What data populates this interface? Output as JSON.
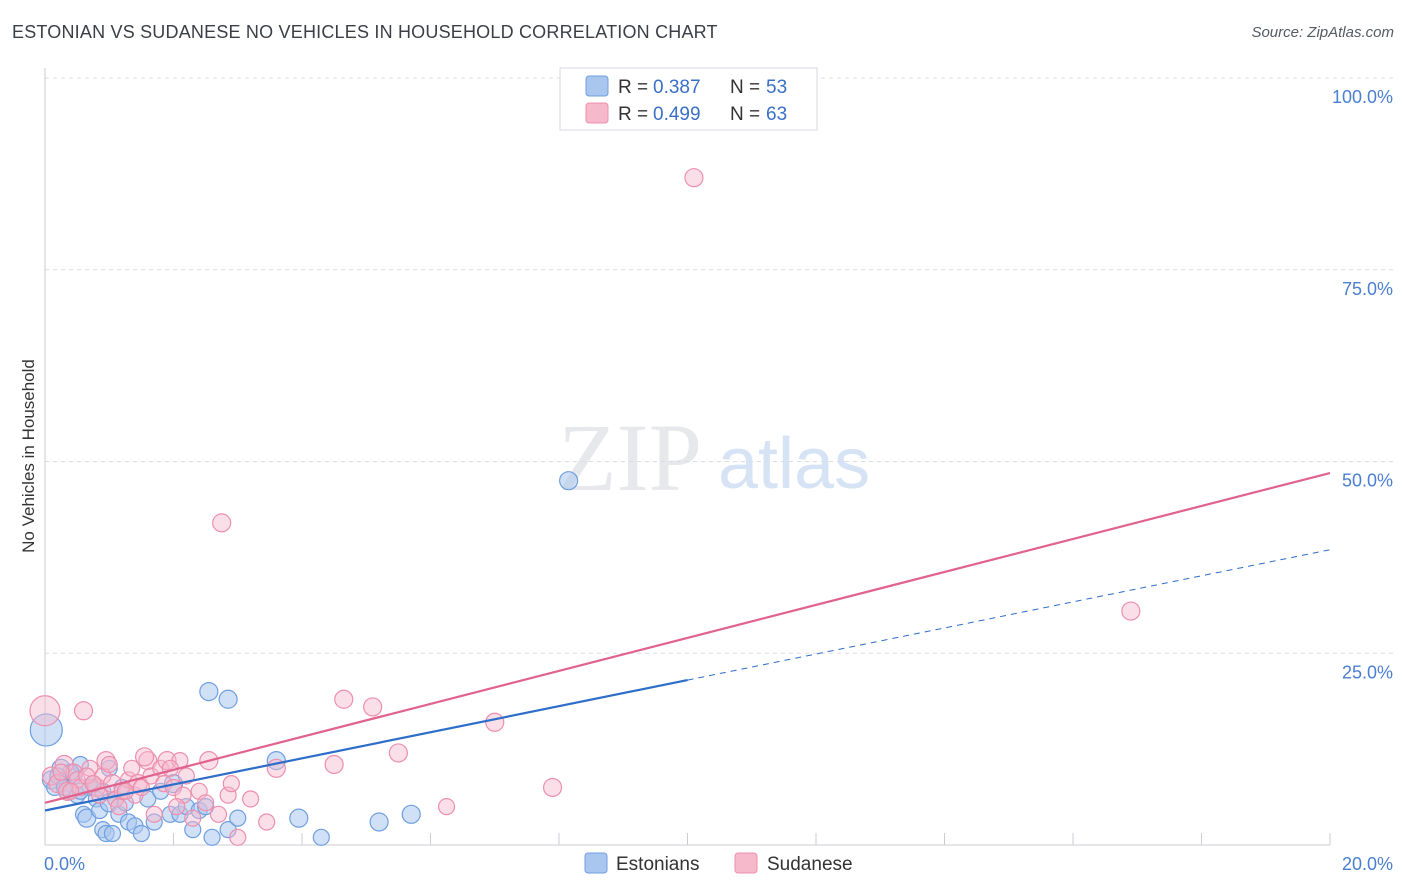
{
  "title": "ESTONIAN VS SUDANESE NO VEHICLES IN HOUSEHOLD CORRELATION CHART",
  "source": "Source: ZipAtlas.com",
  "watermark": {
    "zip": "ZIP",
    "atlas": "atlas"
  },
  "colors": {
    "blue_fill": "#a9c6ef",
    "blue_stroke": "#6f9fe0",
    "blue_line": "#2e6ec9",
    "pink_fill": "#f6b8cb",
    "pink_stroke": "#ec8fad",
    "pink_line": "#e0628d",
    "grid": "#d9dde3",
    "axis_text": "#4a7fd0"
  },
  "legend": {
    "rows": [
      {
        "r_label": "R =",
        "r_value": "0.387",
        "n_label": "N =",
        "n_value": "53",
        "color": "#a9c6ef"
      },
      {
        "r_label": "R =",
        "r_value": "0.499",
        "n_label": "N =",
        "n_value": "63",
        "color": "#f6b8cb"
      }
    ]
  },
  "chart_data": {
    "type": "scatter",
    "title": "ESTONIAN VS SUDANESE NO VEHICLES IN HOUSEHOLD CORRELATION CHART",
    "xlabel": "",
    "ylabel": "No Vehicles in Household",
    "xlim": [
      0,
      20
    ],
    "ylim": [
      0,
      100
    ],
    "x_tick_labels": [
      "0.0%",
      "20.0%"
    ],
    "y_tick_labels": [
      "25.0%",
      "50.0%",
      "75.0%",
      "100.0%"
    ],
    "y_ticks": [
      25,
      50,
      75,
      100
    ],
    "legend_bottom": [
      "Estonians",
      "Sudanese"
    ],
    "series": [
      {
        "name": "Estonians",
        "r": 0.387,
        "n": 53,
        "trend": {
          "x0": 0,
          "y0": 4.5,
          "x1": 10,
          "y1": 21.5,
          "dashed_to_x": 20,
          "dashed_to_y": 38.5
        },
        "points": [
          [
            0.02,
            15.0,
            16
          ],
          [
            0.1,
            8.5,
            9
          ],
          [
            0.15,
            7.5,
            8
          ],
          [
            0.25,
            10.0,
            9
          ],
          [
            0.3,
            8.0,
            8
          ],
          [
            0.35,
            7.0,
            9
          ],
          [
            0.45,
            9.0,
            8
          ],
          [
            0.5,
            6.5,
            8
          ],
          [
            0.55,
            10.5,
            8
          ],
          [
            0.6,
            4.0,
            8
          ],
          [
            0.65,
            3.5,
            9
          ],
          [
            0.7,
            7.5,
            8
          ],
          [
            0.75,
            8.0,
            8
          ],
          [
            0.8,
            6.0,
            8
          ],
          [
            0.85,
            4.5,
            8
          ],
          [
            0.9,
            7.0,
            8
          ],
          [
            0.9,
            2.0,
            8
          ],
          [
            0.95,
            1.5,
            8
          ],
          [
            1.0,
            5.5,
            9
          ],
          [
            1.05,
            1.5,
            8
          ],
          [
            1.1,
            6.0,
            8
          ],
          [
            1.15,
            4.0,
            8
          ],
          [
            1.2,
            7.5,
            8
          ],
          [
            1.3,
            3.0,
            8
          ],
          [
            1.4,
            2.5,
            8
          ],
          [
            1.5,
            1.5,
            8
          ],
          [
            1.6,
            6.0,
            8
          ],
          [
            1.8,
            7.0,
            8
          ],
          [
            1.95,
            4.0,
            8
          ],
          [
            2.0,
            8.0,
            9
          ],
          [
            2.1,
            4.0,
            8
          ],
          [
            2.2,
            5.0,
            8
          ],
          [
            2.4,
            4.5,
            8
          ],
          [
            2.5,
            5.0,
            8
          ],
          [
            2.6,
            1.0,
            8
          ],
          [
            2.85,
            2.0,
            8
          ],
          [
            3.0,
            3.5,
            8
          ],
          [
            2.55,
            20.0,
            9
          ],
          [
            2.85,
            19.0,
            9
          ],
          [
            3.6,
            11.0,
            9
          ],
          [
            3.95,
            3.5,
            9
          ],
          [
            4.3,
            1.0,
            8
          ],
          [
            5.2,
            3.0,
            9
          ],
          [
            5.7,
            4.0,
            9
          ],
          [
            8.15,
            47.5,
            9
          ],
          [
            0.4,
            9.5,
            8
          ],
          [
            1.25,
            5.5,
            8
          ],
          [
            0.2,
            9.0,
            8
          ],
          [
            1.7,
            3.0,
            8
          ],
          [
            0.55,
            7.0,
            8
          ],
          [
            1.0,
            10.0,
            8
          ],
          [
            0.3,
            7.5,
            8
          ],
          [
            2.3,
            2.0,
            8
          ]
        ]
      },
      {
        "name": "Sudanese",
        "r": 0.499,
        "n": 63,
        "trend": {
          "x0": 0,
          "y0": 5.5,
          "x1": 20,
          "y1": 48.5
        },
        "points": [
          [
            0.0,
            17.5,
            15
          ],
          [
            0.1,
            9.0,
            9
          ],
          [
            0.2,
            8.0,
            9
          ],
          [
            0.3,
            10.5,
            9
          ],
          [
            0.35,
            7.0,
            9
          ],
          [
            0.45,
            9.5,
            8
          ],
          [
            0.5,
            8.5,
            8
          ],
          [
            0.55,
            7.5,
            8
          ],
          [
            0.6,
            17.5,
            9
          ],
          [
            0.7,
            10.0,
            8
          ],
          [
            0.8,
            7.5,
            9
          ],
          [
            0.85,
            6.5,
            8
          ],
          [
            0.9,
            9.0,
            8
          ],
          [
            0.95,
            11.0,
            9
          ],
          [
            1.0,
            10.5,
            8
          ],
          [
            1.05,
            8.0,
            9
          ],
          [
            1.1,
            6.0,
            8
          ],
          [
            1.15,
            5.0,
            8
          ],
          [
            1.2,
            7.0,
            8
          ],
          [
            1.3,
            8.5,
            8
          ],
          [
            1.35,
            10.0,
            8
          ],
          [
            1.4,
            6.5,
            8
          ],
          [
            1.45,
            8.0,
            9
          ],
          [
            1.5,
            7.5,
            8
          ],
          [
            1.6,
            11.0,
            9
          ],
          [
            1.65,
            9.0,
            8
          ],
          [
            1.7,
            4.0,
            8
          ],
          [
            1.8,
            10.0,
            8
          ],
          [
            1.85,
            8.0,
            8
          ],
          [
            1.9,
            11.0,
            9
          ],
          [
            2.0,
            7.5,
            8
          ],
          [
            2.1,
            11.0,
            8
          ],
          [
            2.15,
            6.5,
            8
          ],
          [
            2.2,
            9.0,
            8
          ],
          [
            2.3,
            3.5,
            8
          ],
          [
            2.4,
            7.0,
            8
          ],
          [
            2.5,
            5.5,
            8
          ],
          [
            2.55,
            11.0,
            9
          ],
          [
            2.7,
            4.0,
            8
          ],
          [
            2.85,
            6.5,
            8
          ],
          [
            2.9,
            8.0,
            8
          ],
          [
            3.0,
            1.0,
            8
          ],
          [
            3.2,
            6.0,
            8
          ],
          [
            3.45,
            3.0,
            8
          ],
          [
            3.6,
            10.0,
            9
          ],
          [
            4.5,
            10.5,
            9
          ],
          [
            4.65,
            19.0,
            9
          ],
          [
            5.1,
            18.0,
            9
          ],
          [
            5.5,
            12.0,
            9
          ],
          [
            6.25,
            5.0,
            8
          ],
          [
            7.0,
            16.0,
            9
          ],
          [
            7.9,
            7.5,
            9
          ],
          [
            2.75,
            42.0,
            9
          ],
          [
            10.1,
            87.0,
            9
          ],
          [
            16.9,
            30.5,
            9
          ],
          [
            0.25,
            9.5,
            8
          ],
          [
            0.65,
            9.0,
            8
          ],
          [
            1.25,
            7.0,
            8
          ],
          [
            1.55,
            11.5,
            9
          ],
          [
            2.05,
            5.0,
            8
          ],
          [
            0.75,
            8.0,
            8
          ],
          [
            1.95,
            10.0,
            8
          ],
          [
            0.4,
            7.0,
            8
          ]
        ]
      }
    ]
  }
}
